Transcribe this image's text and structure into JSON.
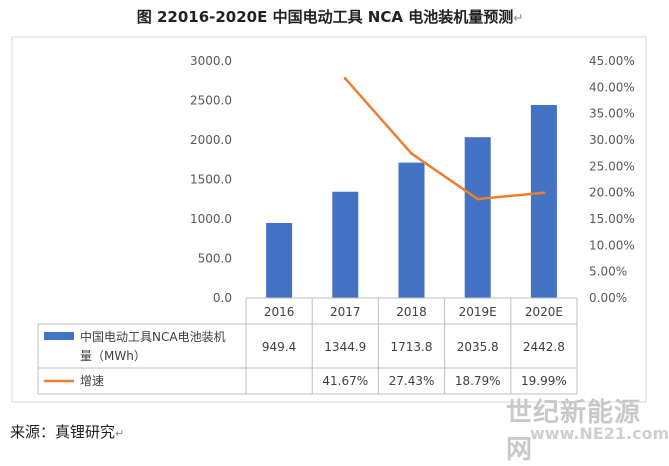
{
  "title": "图 22016-2020E  中国电动工具 NCA 电池装机量预测",
  "paragraph_mark": "↵",
  "source": "来源：真锂研究",
  "watermark": "世纪新能源网",
  "watermark_url": "www.NE21.com",
  "chart_data": {
    "type": "bar",
    "categories": [
      "2016",
      "2017",
      "2018",
      "2019E",
      "2020E"
    ],
    "series": [
      {
        "name": "中国电动工具NCA电池装机量（MWh）",
        "type": "bar",
        "axis": "left",
        "color": "#4472c4",
        "values": [
          949.4,
          1344.9,
          1713.8,
          2035.8,
          2442.8
        ],
        "labels": [
          "949.4",
          "1344.9",
          "1713.8",
          "2035.8",
          "2442.8"
        ]
      },
      {
        "name": "增速",
        "type": "line",
        "axis": "right",
        "color": "#ed7d31",
        "values": [
          null,
          41.67,
          27.43,
          18.79,
          19.99
        ],
        "labels": [
          "",
          "41.67%",
          "27.43%",
          "18.79%",
          "19.99%"
        ]
      }
    ],
    "y_left": {
      "ylim": [
        0,
        3000
      ],
      "ticks": [
        "0.0",
        "500.0",
        "1000.0",
        "1500.0",
        "2000.0",
        "2500.0",
        "3000.0"
      ]
    },
    "y_right": {
      "ylim": [
        0,
        45
      ],
      "ticks": [
        "0.00%",
        "5.00%",
        "10.00%",
        "15.00%",
        "20.00%",
        "25.00%",
        "30.00%",
        "35.00%",
        "40.00%",
        "45.00%"
      ]
    },
    "grid": false,
    "legend": "data table below chart"
  }
}
